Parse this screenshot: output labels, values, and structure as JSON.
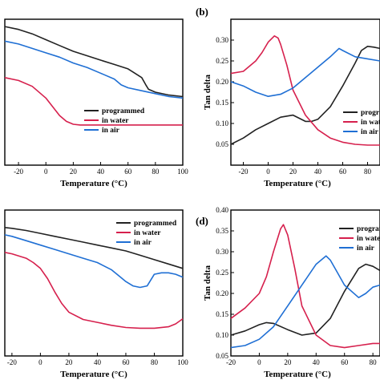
{
  "panel_labels": [
    "(b)",
    "(d)"
  ],
  "chart_data": [
    {
      "type": "line",
      "xlabel": "Temperature (°C)",
      "ylabel": "",
      "xlim": [
        -30,
        100
      ],
      "ylim": [
        0,
        1
      ],
      "log_y": true,
      "x_ticks": [
        "-20",
        "0",
        "20",
        "40",
        "60",
        "80",
        "100"
      ],
      "y_ticks": [],
      "legend": "lower-right",
      "series": [
        {
          "name": "programmed",
          "color": "#222222",
          "x": [
            -30,
            -20,
            -10,
            0,
            10,
            20,
            30,
            40,
            50,
            60,
            65,
            70,
            73,
            75,
            80,
            90,
            100
          ],
          "y": [
            0.95,
            0.93,
            0.9,
            0.86,
            0.82,
            0.78,
            0.75,
            0.72,
            0.69,
            0.66,
            0.63,
            0.6,
            0.55,
            0.52,
            0.5,
            0.48,
            0.47
          ]
        },
        {
          "name": "in water",
          "color": "#d6204d",
          "x": [
            -30,
            -20,
            -10,
            0,
            5,
            10,
            15,
            20,
            25,
            30,
            40,
            60,
            80,
            100
          ],
          "y": [
            0.6,
            0.58,
            0.54,
            0.46,
            0.4,
            0.34,
            0.3,
            0.28,
            0.275,
            0.275,
            0.275,
            0.275,
            0.275,
            0.275
          ]
        },
        {
          "name": "in air",
          "color": "#1f6fd4",
          "x": [
            -30,
            -20,
            -10,
            0,
            10,
            20,
            30,
            40,
            50,
            55,
            60,
            70,
            80,
            90,
            100
          ],
          "y": [
            0.85,
            0.83,
            0.8,
            0.77,
            0.74,
            0.7,
            0.67,
            0.63,
            0.59,
            0.55,
            0.53,
            0.51,
            0.49,
            0.47,
            0.46
          ]
        }
      ]
    },
    {
      "type": "line",
      "panel": "(b)",
      "xlabel": "Temperature (°C)",
      "ylabel": "Tan delta",
      "xlim": [
        -30,
        90
      ],
      "ylim": [
        0.0,
        0.35
      ],
      "x_ticks": [
        -20,
        0,
        20,
        40,
        60,
        80
      ],
      "y_ticks": [
        "0.05",
        "0.10",
        "0.15",
        "0.20",
        "0.25",
        "0.30"
      ],
      "legend": "lower-right",
      "series": [
        {
          "name": "programmed",
          "color": "#222222",
          "x": [
            -30,
            -20,
            -10,
            0,
            10,
            20,
            30,
            35,
            40,
            50,
            60,
            70,
            75,
            80,
            85,
            90
          ],
          "y": [
            0.05,
            0.065,
            0.085,
            0.1,
            0.115,
            0.12,
            0.105,
            0.105,
            0.11,
            0.14,
            0.19,
            0.245,
            0.275,
            0.285,
            0.283,
            0.28
          ]
        },
        {
          "name": "in water",
          "color": "#d6204d",
          "x": [
            -30,
            -20,
            -10,
            -5,
            0,
            5,
            8,
            10,
            15,
            20,
            30,
            40,
            50,
            60,
            70,
            80,
            90
          ],
          "y": [
            0.22,
            0.225,
            0.25,
            0.27,
            0.295,
            0.31,
            0.305,
            0.29,
            0.24,
            0.18,
            0.12,
            0.085,
            0.065,
            0.055,
            0.05,
            0.048,
            0.048
          ]
        },
        {
          "name": "in air",
          "color": "#1f6fd4",
          "x": [
            -30,
            -20,
            -10,
            0,
            10,
            20,
            30,
            40,
            50,
            57,
            60,
            70,
            80,
            90
          ],
          "y": [
            0.2,
            0.19,
            0.175,
            0.165,
            0.17,
            0.185,
            0.21,
            0.235,
            0.26,
            0.28,
            0.275,
            0.26,
            0.255,
            0.25
          ]
        }
      ]
    },
    {
      "type": "line",
      "xlabel": "Temperature (°C)",
      "ylabel": "",
      "xlim": [
        -25,
        100
      ],
      "ylim": [
        0,
        1
      ],
      "log_y": true,
      "x_ticks": [
        "-20",
        "0",
        "20",
        "40",
        "60",
        "80",
        "100"
      ],
      "y_ticks": [],
      "legend": "upper-right",
      "series": [
        {
          "name": "programmed",
          "color": "#222222",
          "x": [
            -25,
            -20,
            -10,
            0,
            10,
            20,
            30,
            40,
            50,
            60,
            70,
            80,
            90,
            100
          ],
          "y": [
            0.88,
            0.875,
            0.86,
            0.84,
            0.82,
            0.8,
            0.78,
            0.76,
            0.74,
            0.72,
            0.69,
            0.66,
            0.63,
            0.6
          ]
        },
        {
          "name": "in water",
          "color": "#d6204d",
          "x": [
            -25,
            -20,
            -10,
            -5,
            0,
            5,
            10,
            15,
            20,
            30,
            40,
            50,
            60,
            70,
            80,
            90,
            95,
            100
          ],
          "y": [
            0.71,
            0.7,
            0.67,
            0.64,
            0.6,
            0.53,
            0.44,
            0.36,
            0.3,
            0.25,
            0.23,
            0.21,
            0.195,
            0.19,
            0.19,
            0.2,
            0.22,
            0.255
          ]
        },
        {
          "name": "in air",
          "color": "#1f6fd4",
          "x": [
            -25,
            -20,
            -10,
            0,
            10,
            20,
            30,
            40,
            50,
            55,
            60,
            65,
            70,
            75,
            80,
            85,
            90,
            95,
            100
          ],
          "y": [
            0.83,
            0.82,
            0.79,
            0.76,
            0.73,
            0.7,
            0.67,
            0.64,
            0.59,
            0.55,
            0.51,
            0.48,
            0.47,
            0.48,
            0.56,
            0.57,
            0.57,
            0.56,
            0.54
          ]
        }
      ]
    },
    {
      "type": "line",
      "panel": "(d)",
      "xlabel": "Temperature (°C)",
      "ylabel": "Tan delta",
      "xlim": [
        -20,
        85
      ],
      "ylim": [
        0.05,
        0.4
      ],
      "x_ticks": [
        -20,
        0,
        20,
        40,
        60,
        80
      ],
      "y_ticks": [
        "0.05",
        "0.10",
        "0.15",
        "0.20",
        "0.25",
        "0.30",
        "0.35",
        "0.40"
      ],
      "legend": "upper-right",
      "series": [
        {
          "name": "programmed",
          "color": "#222222",
          "x": [
            -20,
            -10,
            0,
            5,
            10,
            20,
            30,
            40,
            50,
            60,
            70,
            75,
            80,
            85
          ],
          "y": [
            0.1,
            0.11,
            0.125,
            0.13,
            0.128,
            0.113,
            0.1,
            0.105,
            0.14,
            0.205,
            0.26,
            0.27,
            0.265,
            0.255
          ]
        },
        {
          "name": "in water",
          "color": "#d6204d",
          "x": [
            -20,
            -10,
            0,
            5,
            10,
            15,
            17,
            20,
            25,
            30,
            40,
            50,
            60,
            70,
            80,
            85
          ],
          "y": [
            0.14,
            0.165,
            0.2,
            0.24,
            0.3,
            0.355,
            0.365,
            0.34,
            0.26,
            0.17,
            0.1,
            0.075,
            0.07,
            0.075,
            0.08,
            0.08
          ]
        },
        {
          "name": "in air",
          "color": "#1f6fd4",
          "x": [
            -20,
            -10,
            0,
            10,
            20,
            30,
            40,
            47,
            50,
            55,
            60,
            70,
            75,
            80,
            85
          ],
          "y": [
            0.07,
            0.075,
            0.09,
            0.12,
            0.17,
            0.22,
            0.27,
            0.29,
            0.28,
            0.25,
            0.22,
            0.19,
            0.2,
            0.215,
            0.22
          ]
        }
      ]
    }
  ]
}
